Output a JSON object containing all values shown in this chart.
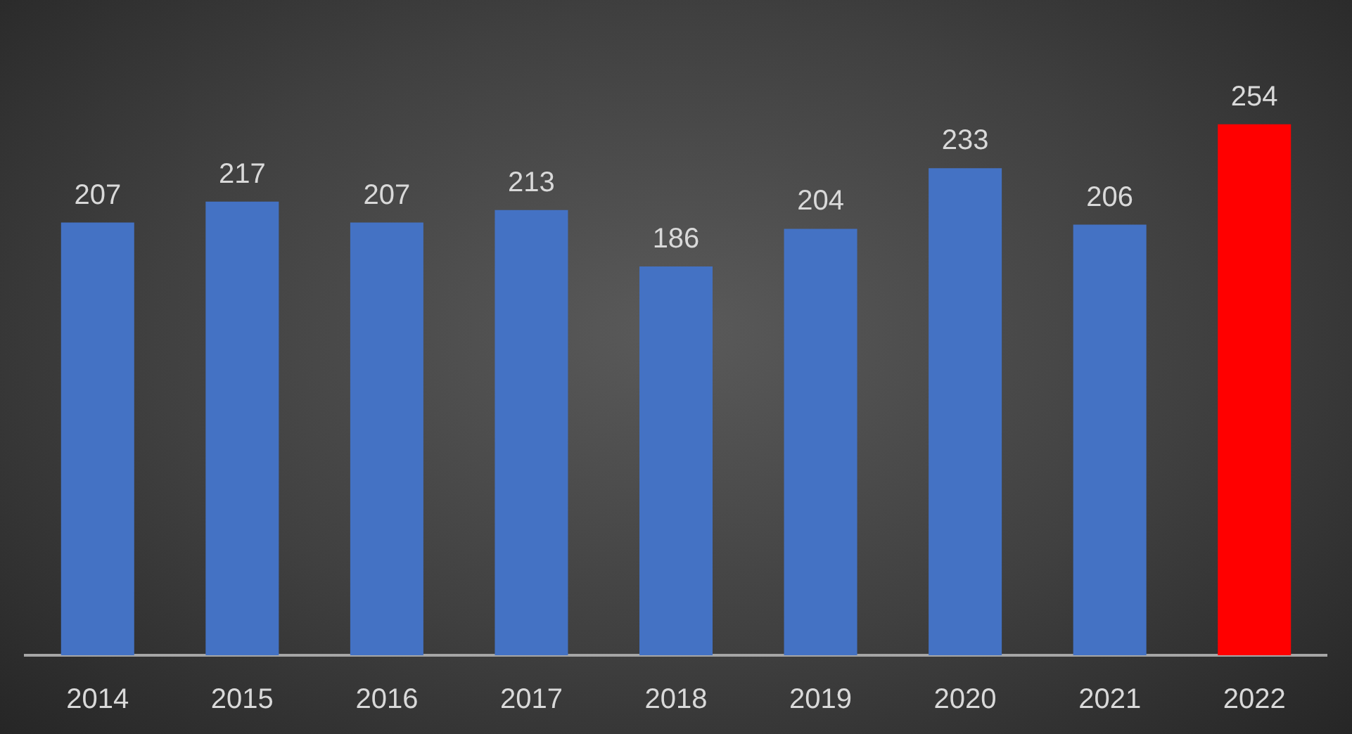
{
  "chart_data": {
    "type": "bar",
    "categories": [
      "2014",
      "2015",
      "2016",
      "2017",
      "2018",
      "2019",
      "2020",
      "2021",
      "2022"
    ],
    "values": [
      207,
      217,
      207,
      213,
      186,
      204,
      233,
      206,
      254
    ],
    "colors": [
      "#4472c4",
      "#4472c4",
      "#4472c4",
      "#4472c4",
      "#4472c4",
      "#4472c4",
      "#4472c4",
      "#4472c4",
      "#ff0000"
    ],
    "data_labels": true
  }
}
